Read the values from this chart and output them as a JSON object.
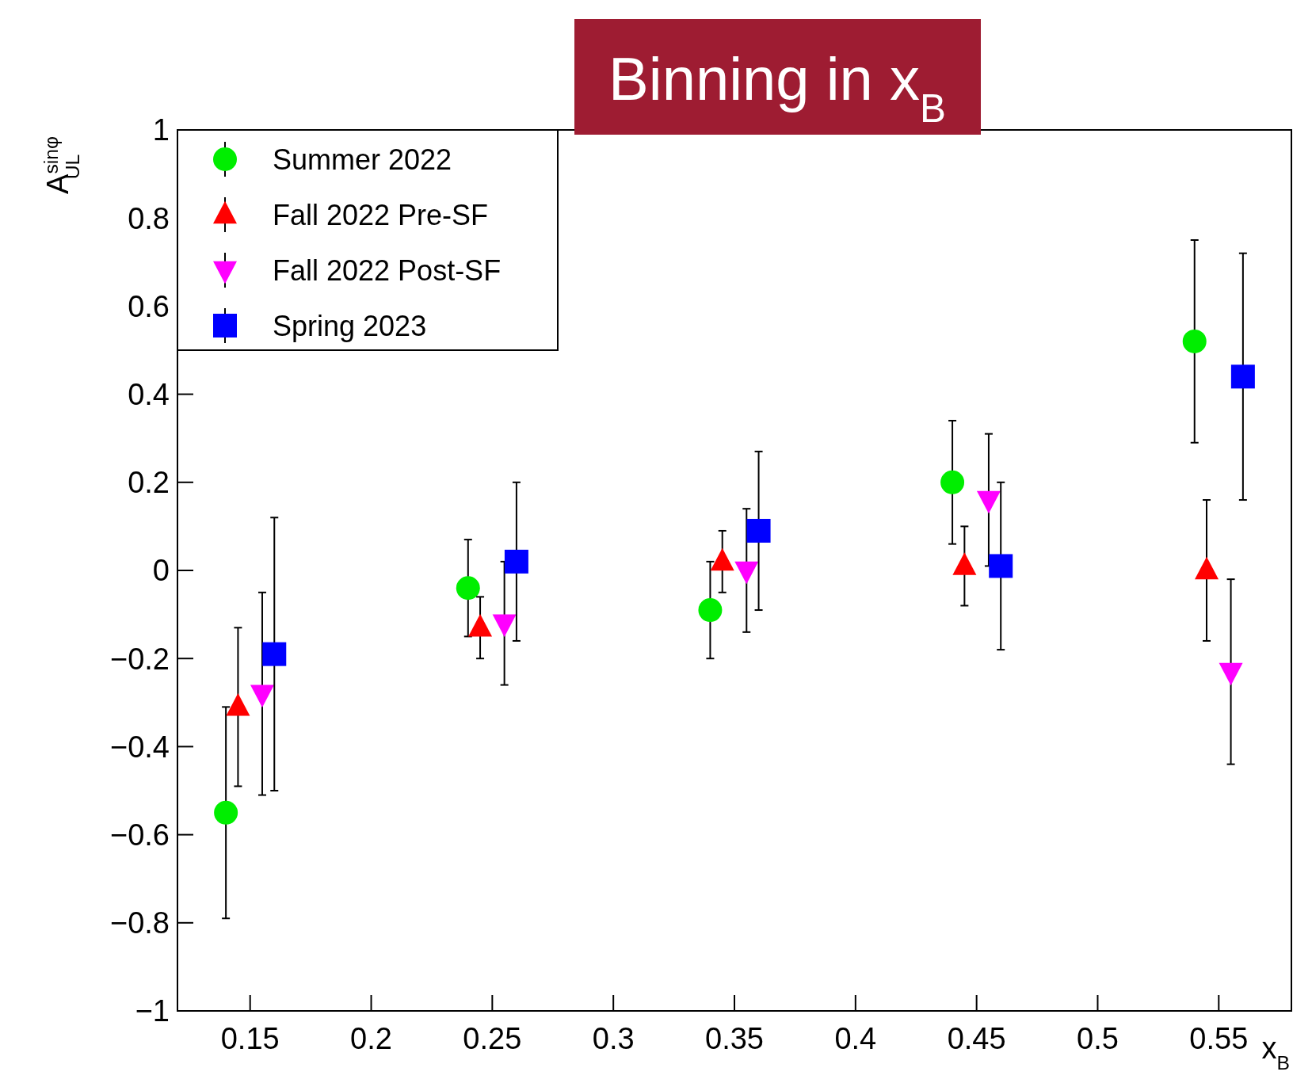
{
  "chart_data": {
    "type": "scatter",
    "title": "Binning in x$_{B}$",
    "xlabel": "x$_{B}$",
    "ylabel": "A$^{sinφ}$$_{UL}$",
    "xlim": [
      0.12,
      0.58
    ],
    "xticks": [
      0.15,
      0.2,
      0.25,
      0.3,
      0.35,
      0.4,
      0.45,
      0.5,
      0.55
    ],
    "ylim": [
      -1,
      1
    ],
    "yticks": [
      {
        "value": -1,
        "label": "−1"
      },
      {
        "value": -0.8,
        "label": "−0.8"
      },
      {
        "value": -0.6,
        "label": "−0.6"
      },
      {
        "value": -0.4,
        "label": "−0.4"
      },
      {
        "value": -0.2,
        "label": "−0.2"
      },
      0,
      0.2,
      0.4,
      0.6,
      0.8,
      1
    ],
    "grid": false,
    "legend": "top left",
    "series": [
      {
        "name": "Summer 2022",
        "color": "#00ee00",
        "marker": "circle",
        "x": [
          0.14,
          0.24,
          0.34,
          0.44,
          0.54
        ],
        "values": [
          -0.55,
          -0.04,
          -0.09,
          0.2,
          0.52
        ],
        "errors": [
          0.24,
          0.11,
          0.11,
          0.14,
          0.23
        ]
      },
      {
        "name": "Fall 2022 Pre-SF",
        "color": "#ff0000",
        "marker": "triangle",
        "x": [
          0.145,
          0.245,
          0.345,
          0.445,
          0.545
        ],
        "values": [
          -0.31,
          -0.13,
          0.02,
          0.01,
          0.0
        ],
        "errors": [
          0.18,
          0.07,
          0.07,
          0.09,
          0.16
        ]
      },
      {
        "name": "Fall 2022 Post-SF",
        "color": "#ff00ff",
        "marker": "triangle-down",
        "x": [
          0.155,
          0.255,
          0.355,
          0.455,
          0.555
        ],
        "values": [
          -0.28,
          -0.12,
          0.0,
          0.16,
          -0.23
        ],
        "errors": [
          0.23,
          0.14,
          0.14,
          0.15,
          0.21
        ]
      },
      {
        "name": "Spring 2023",
        "color": "#0000ff",
        "marker": "square",
        "x": [
          0.16,
          0.26,
          0.36,
          0.46,
          0.56
        ],
        "values": [
          -0.19,
          0.02,
          0.09,
          0.01,
          0.44
        ],
        "errors": [
          0.31,
          0.18,
          0.18,
          0.19,
          0.28
        ]
      }
    ]
  }
}
